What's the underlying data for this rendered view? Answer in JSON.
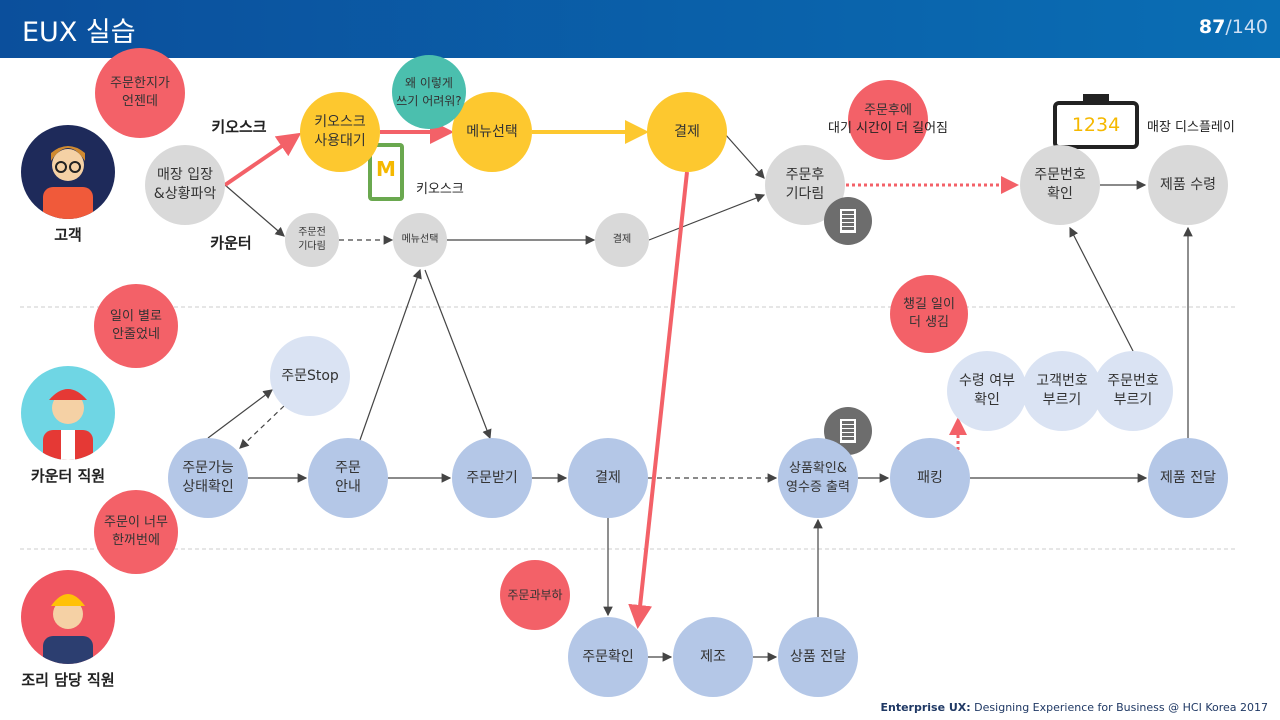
{
  "header": {
    "title": "EUX 실습",
    "page_current": "87",
    "page_total": "/140"
  },
  "actors": [
    {
      "label": "고객"
    },
    {
      "label": "카운터 직원"
    },
    {
      "label": "조리 담당 직원"
    }
  ],
  "channels": {
    "kiosk": "키오스크",
    "counter": "카운터",
    "kiosk_device": "키오스크",
    "store_display": "매장 디스플레이",
    "display_number": "1234"
  },
  "customer_nodes": {
    "enter": [
      "매장 입장",
      "&상황파악"
    ],
    "kiosk_wait": [
      "키오스크",
      "사용대기"
    ],
    "menu_kiosk": "메뉴선택",
    "pay_kiosk": "결제",
    "pre_wait": [
      "주문전",
      "기다림"
    ],
    "menu_counter": "메뉴선택",
    "pay_counter": "결제",
    "post_wait": [
      "주문후",
      "기다림"
    ],
    "check_number": [
      "주문번호",
      "확인"
    ],
    "receive": "제품 수령"
  },
  "counter_nodes": {
    "stop": "주문Stop",
    "check_avail": [
      "주문가능",
      "상태확인"
    ],
    "guide": [
      "주문",
      "안내"
    ],
    "take": "주문받기",
    "pay": "결제",
    "verify": [
      "상품확인&",
      "영수증 출력"
    ],
    "pack": "패킹",
    "confirm_receipt": [
      "수령 여부",
      "확인"
    ],
    "call_customer": [
      "고객번호",
      "부르기"
    ],
    "call_order": [
      "주문번호",
      "부르기"
    ],
    "deliver": "제품 전달"
  },
  "cook_nodes": {
    "confirm": "주문확인",
    "make": "제조",
    "handover": "상품 전달"
  },
  "bubbles": {
    "customer": [
      "주문한지가",
      "언젠데"
    ],
    "why_hard": [
      "왜 이렇게",
      "쓰기 어려워?"
    ],
    "longer_wait": [
      "주문후에",
      "대기 시간이 더 길어짐"
    ],
    "counter": [
      "일이 별로",
      "안줄었네"
    ],
    "more_tasks": [
      "챙길 일이",
      "더 생김"
    ],
    "cook": [
      "주문이 너무",
      "한꺼번에"
    ],
    "overload": "주문과부하"
  },
  "footer": {
    "brand": "Enterprise UX:",
    "text": " Designing Experience for Business @ HCI Korea 2017"
  },
  "colors": {
    "red": "#f36168",
    "yellow": "#fdc82f",
    "blue": "#b4c7e7",
    "gray": "#d9d9d9"
  }
}
